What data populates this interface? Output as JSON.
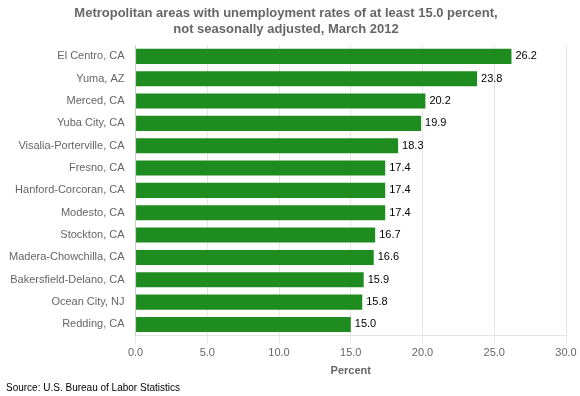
{
  "chart_data": {
    "type": "bar",
    "orientation": "horizontal",
    "title": "Metropolitan areas with unemployment rates of at least 15.0 percent,\nnot seasonally adjusted, March 2012",
    "categories": [
      "El Centro, CA",
      "Yuma, AZ",
      "Merced, CA",
      "Yuba City, CA",
      "Visalia-Porterville, CA",
      "Fresno, CA",
      "Hanford-Corcoran, CA",
      "Modesto, CA",
      "Stockton, CA",
      "Madera-Chowchilla, CA",
      "Bakersfield-Delano, CA",
      "Ocean City, NJ",
      "Redding, CA"
    ],
    "values": [
      26.2,
      23.8,
      20.2,
      19.9,
      18.3,
      17.4,
      17.4,
      17.4,
      16.7,
      16.6,
      15.9,
      15.8,
      15.0
    ],
    "value_labels": [
      "26.2",
      "23.8",
      "20.2",
      "19.9",
      "18.3",
      "17.4",
      "17.4",
      "17.4",
      "16.7",
      "16.6",
      "15.9",
      "15.8",
      "15.0"
    ],
    "data_labels": true,
    "color": "#1f8c1f",
    "xlabel": "Percent",
    "xlim": [
      0,
      30
    ],
    "xticks": [
      {
        "value": 0,
        "label": "0.0"
      },
      {
        "value": 5,
        "label": "5.0"
      },
      {
        "value": 10,
        "label": "10.0"
      },
      {
        "value": 15,
        "label": "15.0"
      },
      {
        "value": 20,
        "label": "20.0"
      },
      {
        "value": 25,
        "label": "25.0"
      },
      {
        "value": 30,
        "label": "30.0"
      }
    ],
    "grid": true,
    "annotations": [
      "Source: U.S. Bureau of Labor Statistics"
    ]
  }
}
